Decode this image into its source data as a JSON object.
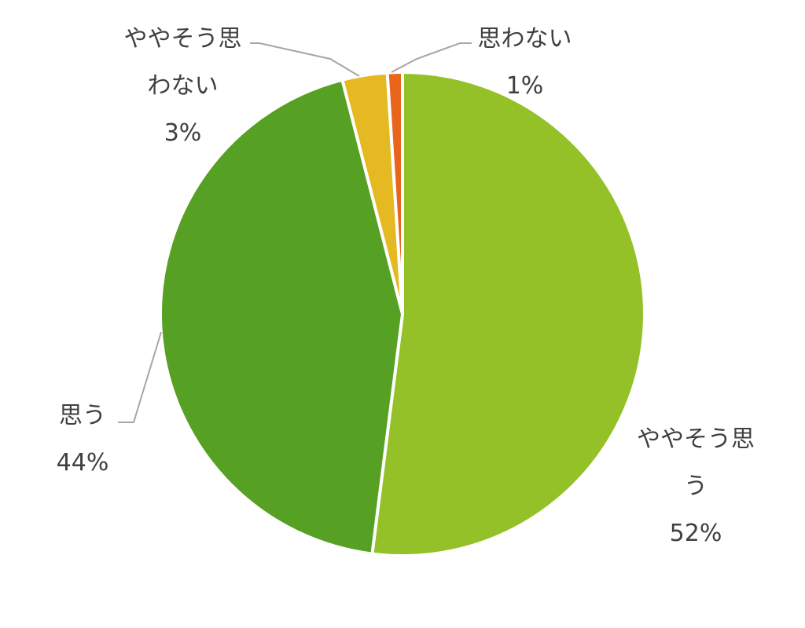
{
  "chart_data": {
    "type": "pie",
    "categories": [
      "ややそう思う",
      "思う",
      "ややそう思わない",
      "思わない"
    ],
    "values": [
      52,
      44,
      3,
      1
    ],
    "value_labels": [
      "52%",
      "44%",
      "3%",
      "1%"
    ],
    "colors": [
      "#93c127",
      "#56a023",
      "#e5b922",
      "#e8661b"
    ]
  }
}
